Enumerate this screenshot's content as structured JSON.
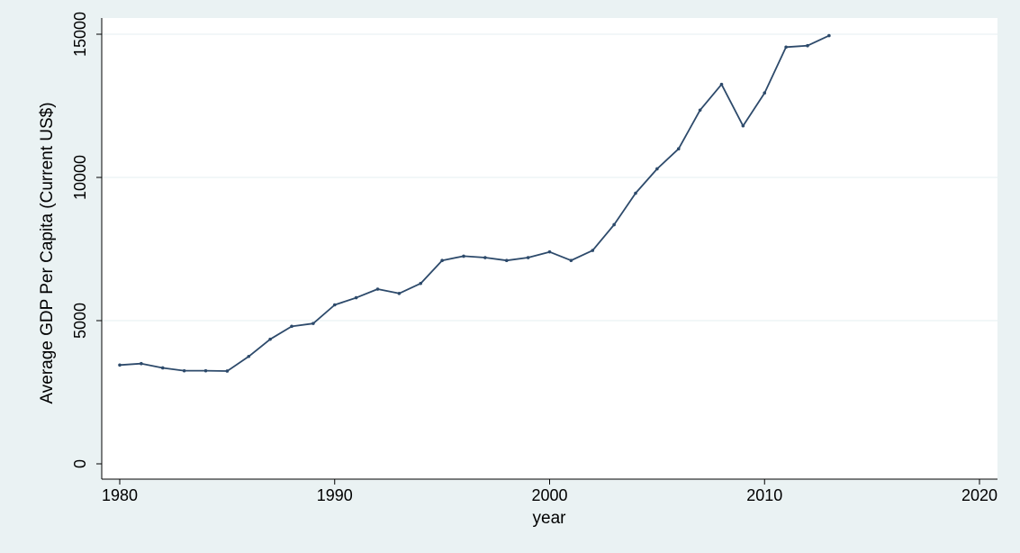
{
  "chart_data": {
    "type": "line",
    "title": "",
    "xlabel": "year",
    "ylabel": "Average GDP Per Capita (Current US$)",
    "xlim": [
      1980,
      2020
    ],
    "ylim": [
      0,
      15500
    ],
    "x_ticks": [
      1980,
      1990,
      2000,
      2010,
      2020
    ],
    "y_ticks": [
      0,
      5000,
      10000,
      15000
    ],
    "grid": true,
    "legend": "none",
    "colors": {
      "line": "#2d4a6b",
      "background": "#eaf2f3",
      "plot_background": "#ffffff",
      "grid": "#eaf2f3"
    },
    "series": [
      {
        "x": [
          1980,
          1981,
          1982,
          1983,
          1984,
          1985,
          1986,
          1987,
          1988,
          1989,
          1990,
          1991,
          1992,
          1993,
          1994,
          1995,
          1996,
          1997,
          1998,
          1999,
          2000,
          2001,
          2002,
          2003,
          2004,
          2005,
          2006,
          2007,
          2008,
          2009,
          2010,
          2011,
          2012,
          2013
        ],
        "values": [
          3450,
          3500,
          3350,
          3250,
          3250,
          3240,
          3750,
          4350,
          4800,
          4900,
          5550,
          5800,
          6100,
          5950,
          6300,
          7100,
          7250,
          7200,
          7100,
          7200,
          7400,
          7100,
          7450,
          8350,
          9450,
          10300,
          11000,
          12350,
          13250,
          11800,
          12950,
          14550,
          14600,
          14950
        ]
      }
    ]
  }
}
